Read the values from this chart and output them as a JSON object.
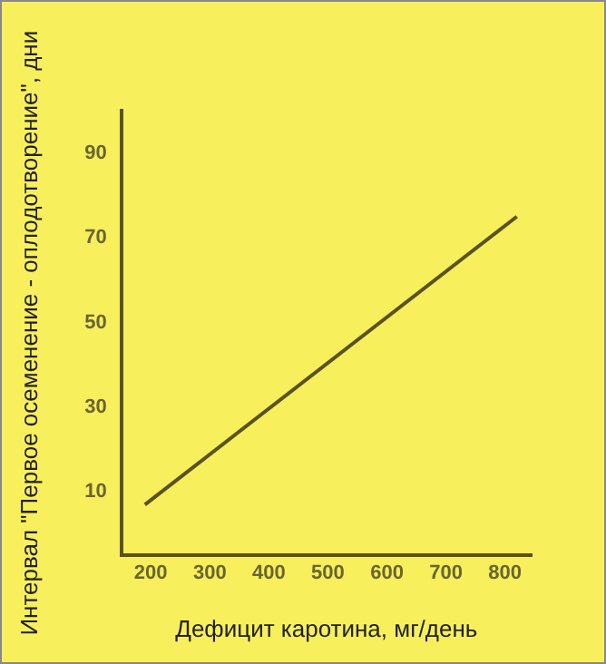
{
  "chart_data": {
    "type": "line",
    "xlabel": "Дефицит каротина, мг/день",
    "ylabel": "Интервал \"Первое осеменение - оплодотворение\", дни",
    "x": [
      190,
      820
    ],
    "series": [
      {
        "color": "#5a5222",
        "values": [
          7,
          75
        ]
      }
    ],
    "xlim": [
      150,
      845
    ],
    "xticks": [
      200,
      300,
      400,
      500,
      600,
      700,
      800
    ],
    "ylim": [
      -5,
      100
    ],
    "yticks": [
      10,
      30,
      50,
      70,
      90
    ],
    "grid": false,
    "legend": false,
    "marker": "none",
    "line_style": "solid"
  }
}
